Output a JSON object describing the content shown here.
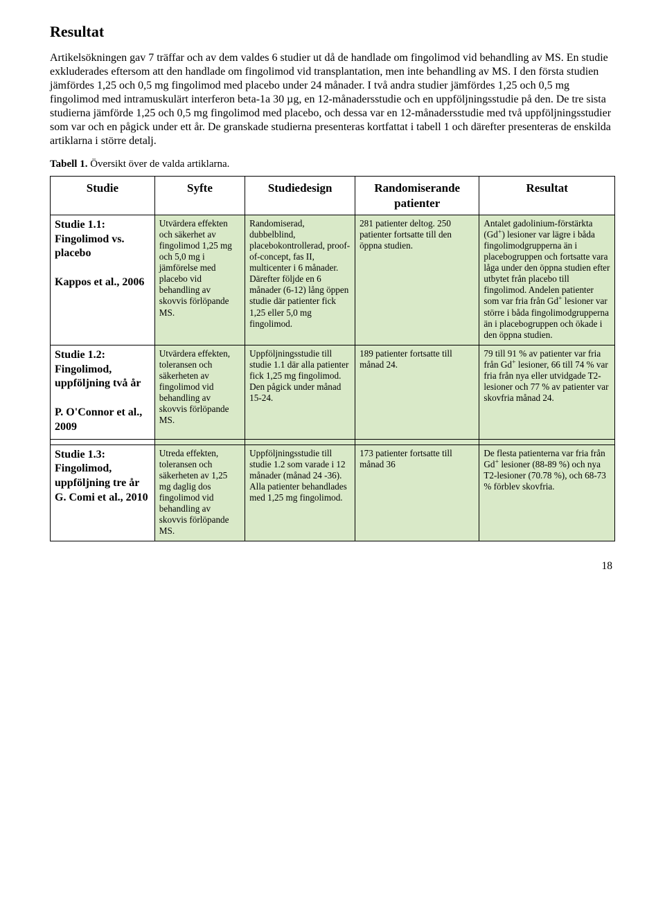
{
  "heading": "Resultat",
  "intro": "Artikelsökningen gav 7 träffar och av dem valdes 6 studier ut då de handlade om fingolimod vid behandling av MS. En studie exkluderades eftersom att den handlade om fingolimod vid transplantation, men inte behandling av MS. I den första studien jämfördes 1,25 och 0,5 mg fingolimod med placebo under 24 månader. I två andra studier jämfördes 1,25 och 0,5 mg fingolimod med intramuskulärt interferon beta-1a 30 µg, en 12-månadersstudie och en uppföljningsstudie på den. De tre sista studierna jämförde 1,25 och 0,5 mg fingolimod med placebo, och dessa var en 12-månadersstudie med två uppföljningsstudier som var och en pågick under ett år. De granskade studierna presenteras kortfattat i tabell 1 och därefter presenteras de enskilda artiklarna i större detalj.",
  "caption_bold": "Tabell 1.",
  "caption_rest": " Översikt över de valda artiklarna.",
  "headers": {
    "c1": "Studie",
    "c2": "Syfte",
    "c3": "Studiedesign",
    "c4": "Randomiserande patienter",
    "c5": "Resultat"
  },
  "rows": [
    {
      "studie": "Studie 1.1:\nFingolimod vs. placebo\n\nKappos et al., 2006",
      "syfte": "Utvärdera effekten och säkerhet av fingolimod 1,25 mg och 5,0 mg i jämförelse med placebo vid behandling av skovvis förlöpande MS.",
      "design": "Randomiserad, dubbelblind, placebokontrollerad, proof-of-concept, fas II, multicenter i 6 månader. Därefter följde en 6 månader (6-12) lång öppen studie där patienter fick 1,25 eller 5,0 mg fingolimod.",
      "random": "281 patienter deltog. 250 patienter fortsatte till den öppna studien.",
      "result": "Antalet gadolinium-förstärkta (Gd⁺) lesioner var lägre i båda fingolimodgrupperna än i placebogruppen och fortsatte vara låga under den öppna studien efter utbytet från placebo till fingolimod. Andelen patienter som var fria från Gd⁺ lesioner var större i båda fingolimodgrupperna än i placebogruppen och ökade i den öppna studien."
    },
    {
      "studie": "Studie 1.2:\nFingolimod, uppföljning två år\n\nP. O'Connor et al., 2009",
      "syfte": "Utvärdera effekten, toleransen och säkerheten av fingolimod vid behandling av skovvis förlöpande MS.",
      "design": "Uppföljningsstudie till studie 1.1 där alla patienter fick 1,25 mg fingolimod. Den pågick under månad 15-24.",
      "random": "189 patienter fortsatte till månad 24.",
      "result": "79 till 91 % av patienter var fria från Gd⁺ lesioner, 66 till 74 % var fria från nya eller utvidgade T2-lesioner och 77 % av patienter var skovfria månad 24."
    },
    {
      "studie": "Studie 1.3:\nFingolimod, uppföljning tre år\nG. Comi et al., 2010",
      "syfte": "Utreda effekten, toleransen och säkerheten av 1,25 mg daglig dos fingolimod vid behandling av skovvis förlöpande MS.",
      "design": "Uppföljningsstudie till studie 1.2 som varade i 12 månader (månad 24 -36). Alla patienter behandlades med 1,25 mg fingolimod.",
      "random": "173 patienter fortsatte till månad 36",
      "result": "De flesta patienterna var fria från Gd⁺ lesioner (88-89 %) och nya T2-lesioner (70.78 %), och 68-73 % förblev skovfria."
    }
  ],
  "page_number": "18"
}
